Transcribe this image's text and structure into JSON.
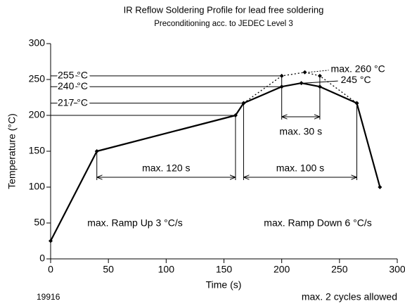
{
  "chart_data": {
    "type": "line",
    "title": "IR Reflow Soldering Profile for lead free soldering",
    "subtitle": "Preconditioning acc. to JEDEC Level 3",
    "xlabel": "Time (s)",
    "ylabel": "Temperature (°C)",
    "xlim": [
      0,
      300
    ],
    "ylim": [
      0,
      300
    ],
    "xticks": [
      0,
      50,
      100,
      150,
      200,
      250,
      300
    ],
    "yticks": [
      0,
      50,
      100,
      150,
      200,
      250,
      300
    ],
    "series": [
      {
        "color": "#000000",
        "dash": false,
        "x": [
          0,
          40,
          160,
          167,
          200,
          217,
          233,
          265,
          285
        ],
        "values": [
          25,
          150,
          200,
          217,
          240,
          245,
          240,
          217,
          100
        ]
      },
      {
        "color": "#000000",
        "dash": true,
        "x": [
          167,
          200,
          220,
          233,
          265
        ],
        "values": [
          217,
          255,
          260,
          255,
          217
        ]
      }
    ],
    "annotations": [
      "255 °C",
      "240 °C",
      "217 °C",
      "max. 260 °C",
      "245 °C",
      "max. 30 s",
      "max. 120 s",
      "max. 100 s",
      "max. Ramp Up 3 °C/s",
      "max. Ramp Down 6 °C/s"
    ],
    "notes": [
      "19916",
      "max. 2 cycles allowed"
    ]
  }
}
